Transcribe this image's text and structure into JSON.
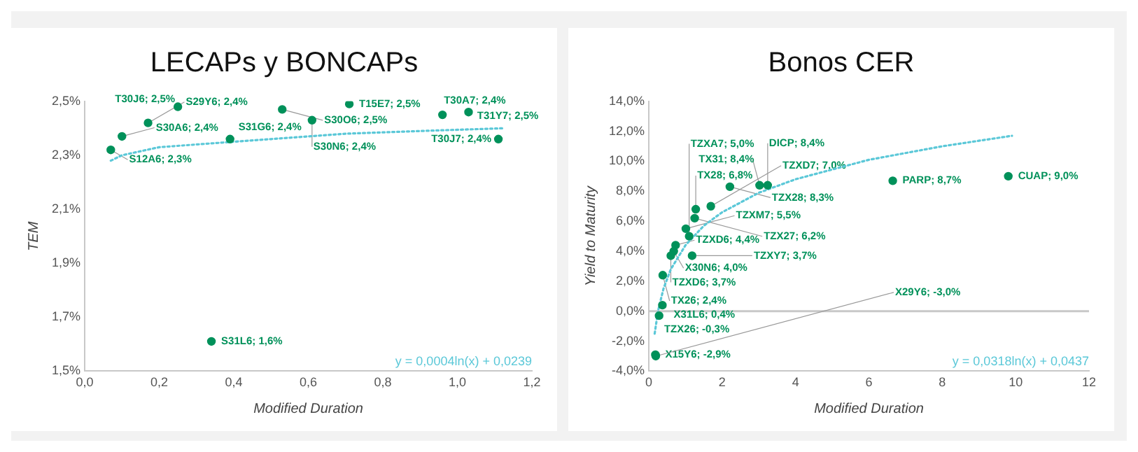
{
  "chart_data": [
    {
      "type": "scatter",
      "title": "LECAPs y BONCAPs",
      "xlabel": "Modified Duration",
      "ylabel": "TEM",
      "xlim": [
        0,
        1.2
      ],
      "xticks": [
        {
          "value": 0,
          "label": "0,0"
        },
        {
          "value": 0.2,
          "label": "0,2"
        },
        {
          "value": 0.4,
          "label": "0,4"
        },
        {
          "value": 0.6,
          "label": "0,6"
        },
        {
          "value": 0.8,
          "label": "0,8"
        },
        {
          "value": 1,
          "label": "1,0"
        },
        {
          "value": 1.2,
          "label": "1,2"
        }
      ],
      "ylim": [
        1.5,
        2.5
      ],
      "yticks": [
        {
          "value": 1.5,
          "label": "1,5%"
        },
        {
          "value": 1.7,
          "label": "1,7%"
        },
        {
          "value": 1.9,
          "label": "1,9%"
        },
        {
          "value": 2.1,
          "label": "2,1%"
        },
        {
          "value": 2.3,
          "label": "2,3%"
        },
        {
          "value": 2.5,
          "label": "2,5%"
        }
      ],
      "grid": false,
      "legend": false,
      "marker": "circle",
      "annotations": [
        "y = 0,0004ln(x) + 0,0239"
      ],
      "series": [
        {
          "color": "#00915a",
          "x": [
            0.07,
            0.1,
            0.17,
            0.25,
            0.39,
            0.53,
            0.61,
            0.71,
            0.96,
            1.03,
            1.11,
            0.34
          ],
          "values": [
            2.32,
            2.37,
            2.42,
            2.48,
            2.36,
            2.47,
            2.43,
            2.49,
            2.45,
            2.46,
            2.36,
            1.61
          ],
          "value_labels": [
            "S12A6; 2,3%",
            "S30A6; 2,4%",
            "S29Y6; 2,4%",
            "T30J6; 2,5%",
            "S31G6; 2,4%",
            "S30O6; 2,5%",
            "S30N6; 2,4%",
            "T15E7; 2,5%",
            "T30A7; 2,4%",
            "T31Y7; 2,5%",
            "T30J7; 2,4%",
            "S31L6; 1,6%"
          ]
        },
        {
          "type": "line",
          "marker": "none",
          "color": "#5bc8d8",
          "line_style": "dotted",
          "x": [
            0.07,
            0.1,
            0.2,
            0.3,
            0.5,
            0.7,
            0.9,
            1.12
          ],
          "values": [
            2.28,
            2.3,
            2.33,
            2.34,
            2.36,
            2.38,
            2.39,
            2.4
          ]
        }
      ]
    },
    {
      "type": "scatter",
      "title": "Bonos CER",
      "xlabel": "Modified Duration",
      "ylabel": "Yield to Maturity",
      "xlim": [
        0,
        12
      ],
      "xticks": [
        0,
        2,
        4,
        6,
        8,
        10,
        12
      ],
      "ylim": [
        -4,
        14
      ],
      "yticks": [
        {
          "value": -4,
          "label": "-4,0%"
        },
        {
          "value": -2,
          "label": "-2,0%"
        },
        {
          "value": 0,
          "label": "0,0%"
        },
        {
          "value": 2,
          "label": "2,0%"
        },
        {
          "value": 4,
          "label": "4,0%"
        },
        {
          "value": 6,
          "label": "6,0%"
        },
        {
          "value": 8,
          "label": "8,0%"
        },
        {
          "value": 10,
          "label": "10,0%"
        },
        {
          "value": 12,
          "label": "12,0%"
        },
        {
          "value": 14,
          "label": "14,0%"
        }
      ],
      "grid": false,
      "legend": false,
      "marker": "circle",
      "annotations": [
        "y = 0,0318ln(x) + 0,0437"
      ],
      "ref_lines": [
        {
          "axis": "y",
          "value": 0,
          "color": "#c8c8c8"
        }
      ],
      "series": [
        {
          "color": "#00915a",
          "x": [
            0.68,
            0.73,
            1.01,
            1.28,
            1.69,
            2.21,
            3.02,
            3.24,
            1.25,
            1.1,
            0.6,
            1.18,
            0.38,
            0.37,
            0.28,
            0.18,
            0.19,
            6.65,
            9.8
          ],
          "values": [
            4.0,
            4.4,
            5.5,
            6.8,
            7.0,
            8.3,
            8.4,
            8.4,
            6.2,
            5.0,
            3.7,
            3.7,
            2.4,
            0.4,
            -0.3,
            -2.9,
            -3.0,
            8.7,
            9.0
          ],
          "value_labels": [
            "X30N6; 4,0%",
            "TZXD6; 4,4%",
            "TZXM7; 5,5%",
            "TX28; 6,8%",
            "TZXD7; 7,0%",
            "TZX28; 8,3%",
            "TX31; 8,4%",
            "DICP; 8,4%",
            "TZX27; 6,2%",
            "TZXA7; 5,0%",
            "TZXD6; 3,7%",
            "TZXY7; 3,7%",
            "TX26; 2,4%",
            "X31L6; 0,4%",
            "TZX26; -0,3%",
            "X15Y6; -2,9%",
            "X29Y6; -3,0%",
            "PARP; 8,7%",
            "CUAP; 9,0%"
          ]
        },
        {
          "type": "line",
          "marker": "none",
          "color": "#5bc8d8",
          "line_style": "dotted",
          "x": [
            0.16,
            0.25,
            0.4,
            0.6,
            1,
            1.5,
            2,
            3,
            4,
            6,
            8,
            9.9
          ],
          "values": [
            -1.5,
            0,
            1.5,
            2.8,
            4.4,
            5.7,
            6.6,
            7.9,
            8.8,
            10.1,
            11,
            11.7
          ]
        }
      ]
    }
  ]
}
